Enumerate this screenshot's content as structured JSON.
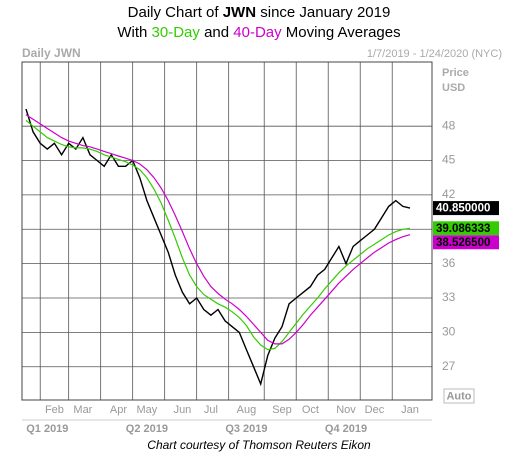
{
  "chart_data": {
    "type": "line",
    "title_parts": [
      "Daily Chart of ",
      "JWN",
      " since January 2019"
    ],
    "subtitle_parts": [
      "With ",
      "30-Day",
      " and ",
      "40-Day",
      " Moving Averages"
    ],
    "panel_label": "Daily JWN",
    "date_range": "1/7/2019 - 1/24/2020 (NYC)",
    "y_axis_label": [
      "Price",
      "USD"
    ],
    "scale_button": "Auto",
    "footer": "Chart courtesy of Thomson Reuters Eikon",
    "categories": [
      null,
      null,
      null,
      null,
      "Feb",
      null,
      null,
      null,
      "Mar",
      null,
      null,
      null,
      null,
      "Apr",
      null,
      null,
      null,
      "May",
      null,
      null,
      null,
      null,
      "Jun",
      null,
      null,
      null,
      "Jul",
      null,
      null,
      null,
      null,
      "Aug",
      null,
      null,
      null,
      null,
      "Sep",
      null,
      null,
      null,
      "Oct",
      null,
      null,
      null,
      null,
      "Nov",
      null,
      null,
      null,
      "Dec",
      null,
      null,
      null,
      null,
      "Jan"
    ],
    "quarter_categories": [
      null,
      null,
      null,
      "Q1 2019",
      null,
      null,
      null,
      null,
      null,
      null,
      null,
      null,
      null,
      null,
      null,
      null,
      null,
      "Q2 2019",
      null,
      null,
      null,
      null,
      null,
      null,
      null,
      null,
      null,
      null,
      null,
      null,
      null,
      "Q3 2019",
      null,
      null,
      null,
      null,
      null,
      null,
      null,
      null,
      null,
      null,
      null,
      null,
      null,
      "Q4 2019",
      null,
      null,
      null,
      null,
      null,
      null,
      null,
      null,
      null
    ],
    "ylim": [
      24.1,
      53.6
    ],
    "yticks": [
      27,
      30,
      33,
      36,
      39,
      42,
      45,
      48
    ],
    "grid": true,
    "series": [
      {
        "name": "JWN",
        "color": "#000000",
        "last_label": "40.850000",
        "values": [
          49.5,
          47.5,
          46.5,
          46,
          46.5,
          45.5,
          46.5,
          46,
          47,
          45.5,
          45,
          44.5,
          45.5,
          44.5,
          44.5,
          45,
          43.5,
          41.5,
          40,
          38.5,
          37,
          35,
          33.5,
          32.5,
          33,
          32,
          31.5,
          32,
          31,
          30.5,
          30,
          28.5,
          27,
          25.5,
          28,
          29.5,
          30.5,
          32.5,
          33,
          33.5,
          34,
          35,
          35.5,
          36.5,
          37.5,
          36,
          37.5,
          38,
          38.5,
          39,
          40,
          41,
          41.5,
          41,
          40.85
        ]
      },
      {
        "name": "30-Day",
        "color": "#33cc00",
        "last_label": "39.086333",
        "values": [
          48.5,
          48,
          47.5,
          47,
          46.7,
          46.4,
          46.2,
          46.1,
          46.1,
          46,
          45.8,
          45.5,
          45.3,
          45.1,
          44.9,
          44.6,
          44.2,
          43.5,
          42.5,
          41.3,
          39.8,
          38.2,
          36.5,
          35,
          34,
          33.3,
          32.9,
          32.5,
          32.2,
          31.8,
          31.3,
          30.6,
          29.6,
          28.9,
          28.5,
          28.6,
          29.2,
          30,
          30.8,
          31.6,
          32.3,
          33,
          33.8,
          34.5,
          35.2,
          35.8,
          36.3,
          36.8,
          37.3,
          37.7,
          38.1,
          38.5,
          38.8,
          39,
          39.086333
        ]
      },
      {
        "name": "40-Day",
        "color": "#cc00cc",
        "last_label": "38.526500",
        "values": [
          49,
          48.6,
          48.2,
          47.8,
          47.4,
          47,
          46.7,
          46.5,
          46.3,
          46.2,
          46,
          45.8,
          45.6,
          45.4,
          45.2,
          45,
          44.7,
          44.2,
          43.5,
          42.6,
          41.5,
          40.2,
          38.8,
          37.3,
          36,
          34.9,
          34,
          33.4,
          32.9,
          32.5,
          32,
          31.4,
          30.7,
          30,
          29.3,
          29,
          29,
          29.4,
          30,
          30.7,
          31.5,
          32.2,
          32.9,
          33.6,
          34.3,
          34.9,
          35.5,
          36,
          36.5,
          37,
          37.4,
          37.8,
          38.1,
          38.35,
          38.5265
        ]
      }
    ]
  }
}
